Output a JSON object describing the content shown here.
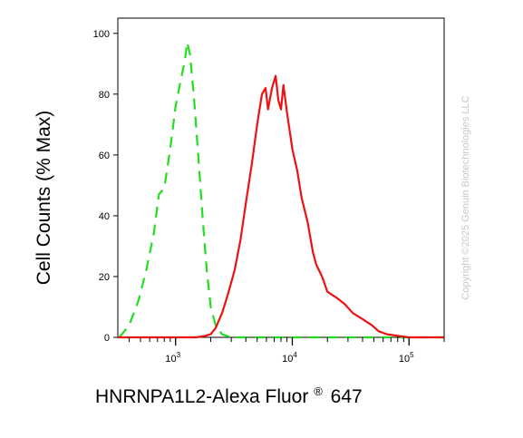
{
  "chart_data": {
    "type": "line",
    "title": "",
    "xlabel": "HNRNPA1L2-Alexa Fluor",
    "xlabel_sup": "®",
    "xlabel_suffix": "647",
    "ylabel": "Cell Counts (% Max)",
    "x_scale": "log",
    "xlim": [
      320,
      200000
    ],
    "ylim": [
      0,
      105
    ],
    "x_major_ticks": [
      1000,
      10000,
      100000
    ],
    "x_tick_labels": [
      {
        "base": "10",
        "exp": "3"
      },
      {
        "base": "10",
        "exp": "4"
      },
      {
        "base": "10",
        "exp": "5"
      }
    ],
    "y_ticks": [
      0,
      20,
      40,
      60,
      80,
      100
    ],
    "y_tick_labels": [
      "0",
      "20",
      "40",
      "60",
      "80",
      "100"
    ],
    "grid": false,
    "legend": "none",
    "series": [
      {
        "style": "dashed",
        "color": "#22dd22",
        "points": [
          [
            330,
            0
          ],
          [
            400,
            4
          ],
          [
            480,
            12
          ],
          [
            560,
            22
          ],
          [
            650,
            34
          ],
          [
            720,
            47
          ],
          [
            800,
            49
          ],
          [
            900,
            62
          ],
          [
            1000,
            76
          ],
          [
            1100,
            84
          ],
          [
            1200,
            91
          ],
          [
            1260,
            97
          ],
          [
            1330,
            93
          ],
          [
            1430,
            80
          ],
          [
            1550,
            62
          ],
          [
            1700,
            40
          ],
          [
            1850,
            22
          ],
          [
            2000,
            10
          ],
          [
            2200,
            4
          ],
          [
            2500,
            1
          ],
          [
            3000,
            0
          ],
          [
            10000,
            0
          ],
          [
            100000,
            0
          ],
          [
            200000,
            0
          ]
        ]
      },
      {
        "style": "solid",
        "color": "#ee1111",
        "points": [
          [
            320,
            0
          ],
          [
            1000,
            0
          ],
          [
            1500,
            0
          ],
          [
            1800,
            0.5
          ],
          [
            2000,
            1
          ],
          [
            2200,
            3
          ],
          [
            2500,
            8
          ],
          [
            2800,
            14
          ],
          [
            3200,
            22
          ],
          [
            3600,
            32
          ],
          [
            4000,
            44
          ],
          [
            4500,
            57
          ],
          [
            5000,
            70
          ],
          [
            5500,
            80
          ],
          [
            5900,
            82
          ],
          [
            6200,
            75
          ],
          [
            6700,
            82
          ],
          [
            7200,
            86
          ],
          [
            7600,
            78
          ],
          [
            8000,
            75
          ],
          [
            8400,
            83
          ],
          [
            9000,
            74
          ],
          [
            10000,
            62
          ],
          [
            11000,
            55
          ],
          [
            12000,
            46
          ],
          [
            13500,
            38
          ],
          [
            15000,
            28
          ],
          [
            16000,
            24
          ],
          [
            18000,
            20
          ],
          [
            20000,
            15
          ],
          [
            24000,
            13
          ],
          [
            28000,
            11
          ],
          [
            33000,
            8
          ],
          [
            40000,
            6
          ],
          [
            48000,
            4
          ],
          [
            55000,
            2
          ],
          [
            65000,
            1
          ],
          [
            80000,
            0.5
          ],
          [
            100000,
            0
          ],
          [
            200000,
            0
          ]
        ]
      }
    ],
    "watermark": "Copyright ©2025 Genuin Biotechnologies LLC"
  }
}
